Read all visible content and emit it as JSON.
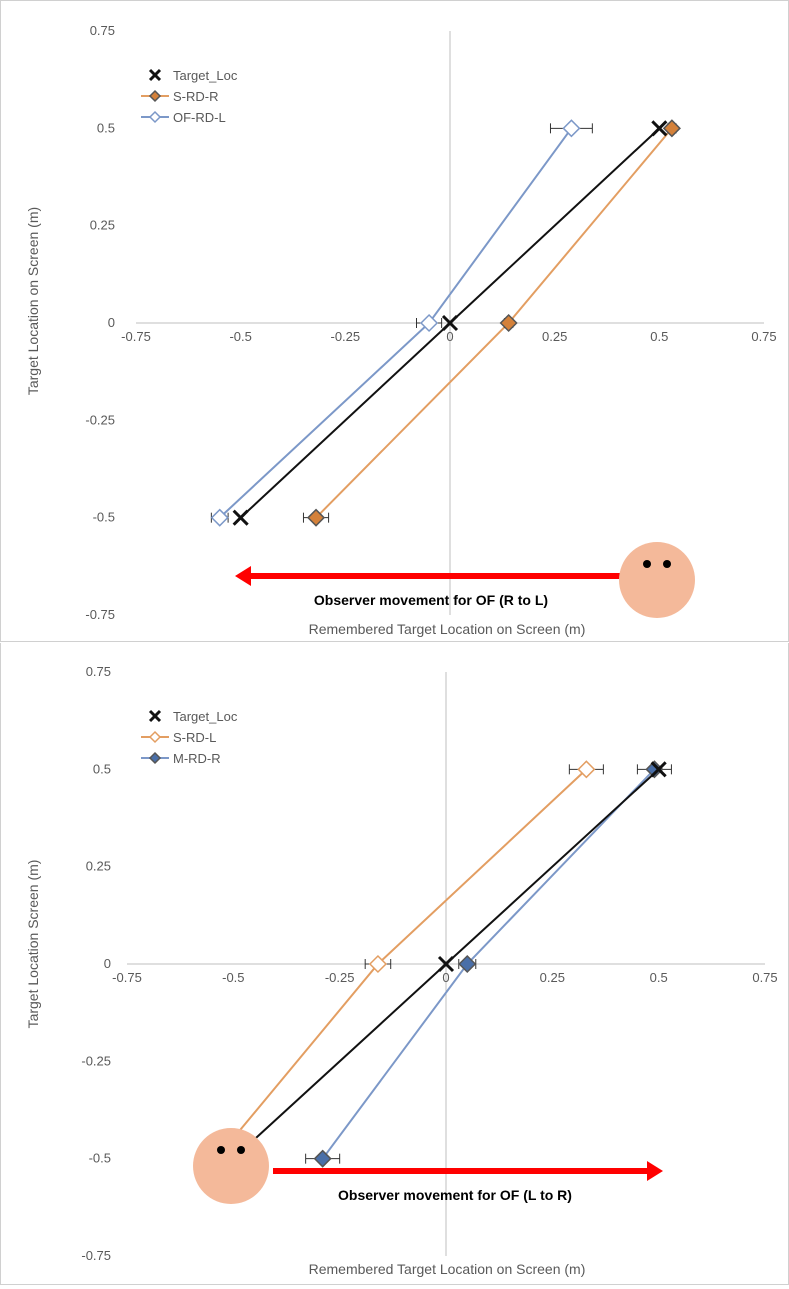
{
  "colors": {
    "target": "#111111",
    "orange": "#E39E62",
    "orange_fill": "#D4813A",
    "blue": "#7C98C8",
    "blue_fill": "#4A6FA8",
    "axis": "#BFBFBF",
    "arrow": "#FF0000",
    "face": "#F4B99A"
  },
  "chart_data": [
    {
      "type": "scatter",
      "xlabel": "Remembered Target Location on Screen (m)",
      "ylabel": "Target Location on Screen (m)",
      "xlim": [
        -0.75,
        0.75
      ],
      "ylim": [
        -0.75,
        0.75
      ],
      "x_ticks": [
        "-0.75",
        "-0.5",
        "-0.25",
        "0",
        "0.25",
        "0.5",
        "0.75"
      ],
      "y_ticks": [
        "0.75",
        "0.5",
        "0.25",
        "0",
        "-0.25",
        "-0.5",
        "-0.75"
      ],
      "legend_position": "top-left",
      "series": [
        {
          "name": "Target_Loc",
          "marker": "x",
          "x": [
            -0.5,
            0,
            0.5
          ],
          "y": [
            -0.5,
            0,
            0.5
          ],
          "err": [
            0,
            0,
            0
          ]
        },
        {
          "name": "S-RD-R",
          "marker": "diamond-filled",
          "x": [
            -0.32,
            0.14,
            0.53
          ],
          "y": [
            -0.5,
            0,
            0.5
          ],
          "err": [
            0.03,
            0.01,
            0.01
          ]
        },
        {
          "name": "OF-RD-L",
          "marker": "diamond-open",
          "x": [
            -0.55,
            -0.05,
            0.29
          ],
          "y": [
            -0.5,
            0,
            0.5
          ],
          "err": [
            0.02,
            0.03,
            0.05
          ]
        }
      ],
      "annotation": {
        "text": "Observer movement for OF (R to L)",
        "direction": "right-to-left"
      }
    },
    {
      "type": "scatter",
      "xlabel": "Remembered Target Location on Screen (m)",
      "ylabel": "Target Location Screen (m)",
      "xlim": [
        -0.75,
        0.75
      ],
      "ylim": [
        -0.75,
        0.75
      ],
      "x_ticks": [
        "-0.75",
        "-0.5",
        "-0.25",
        "0",
        "0.25",
        "0.5",
        "0.75"
      ],
      "y_ticks": [
        "0.75",
        "0.5",
        "0.25",
        "0",
        "-0.25",
        "-0.5",
        "-0.75"
      ],
      "legend_position": "top-left",
      "series": [
        {
          "name": "Target_Loc",
          "marker": "x",
          "x": [
            -0.5,
            0,
            0.5
          ],
          "y": [
            -0.5,
            0,
            0.5
          ],
          "err": [
            0,
            0,
            0
          ]
        },
        {
          "name": "S-RD-L",
          "marker": "diamond-open",
          "x": [
            -0.54,
            -0.16,
            0.33
          ],
          "y": [
            -0.5,
            0,
            0.5
          ],
          "err": [
            0.02,
            0.03,
            0.04
          ]
        },
        {
          "name": "M-RD-R",
          "marker": "diamond-filled",
          "x": [
            -0.29,
            0.05,
            0.49
          ],
          "y": [
            -0.5,
            0,
            0.5
          ],
          "err": [
            0.04,
            0.02,
            0.04
          ]
        }
      ],
      "annotation": {
        "text": "Observer movement for OF (L to R)",
        "direction": "left-to-right"
      }
    }
  ]
}
